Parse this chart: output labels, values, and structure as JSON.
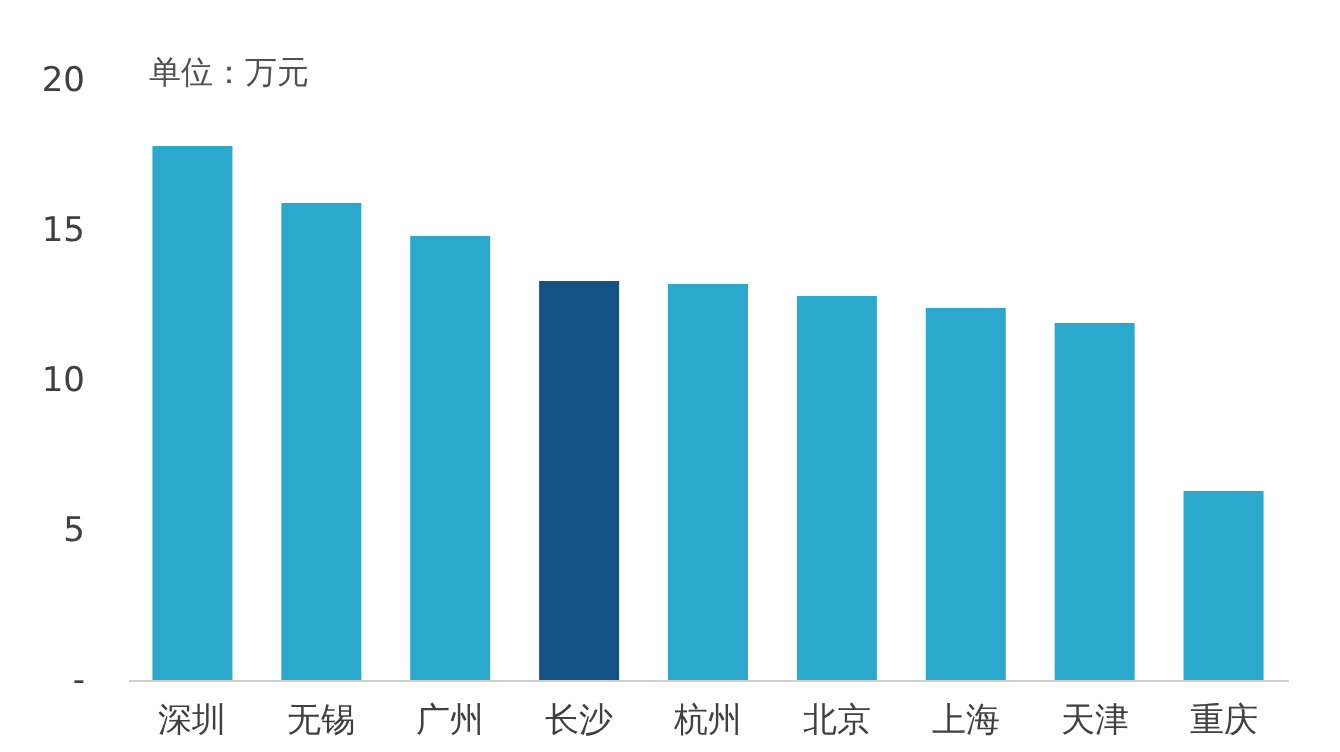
{
  "chart_data": {
    "type": "bar",
    "ylabel": "单位：万元",
    "categories": [
      "深圳",
      "无锡",
      "广州",
      "长沙",
      "杭州",
      "北京",
      "上海",
      "天津",
      "重庆"
    ],
    "values": [
      17.8,
      15.9,
      14.8,
      13.3,
      13.2,
      12.8,
      12.4,
      11.9,
      6.3
    ],
    "colors": [
      "#2ba9cc",
      "#2ba9cc",
      "#2ba9cc",
      "#155284",
      "#2ba9cc",
      "#2ba9cc",
      "#2ba9cc",
      "#2ba9cc",
      "#2ba9cc"
    ],
    "ylim": [
      0,
      20
    ],
    "yticks": [
      {
        "value": 0,
        "label": "-"
      },
      5,
      10,
      15,
      20
    ],
    "grid": false,
    "legend": false
  }
}
